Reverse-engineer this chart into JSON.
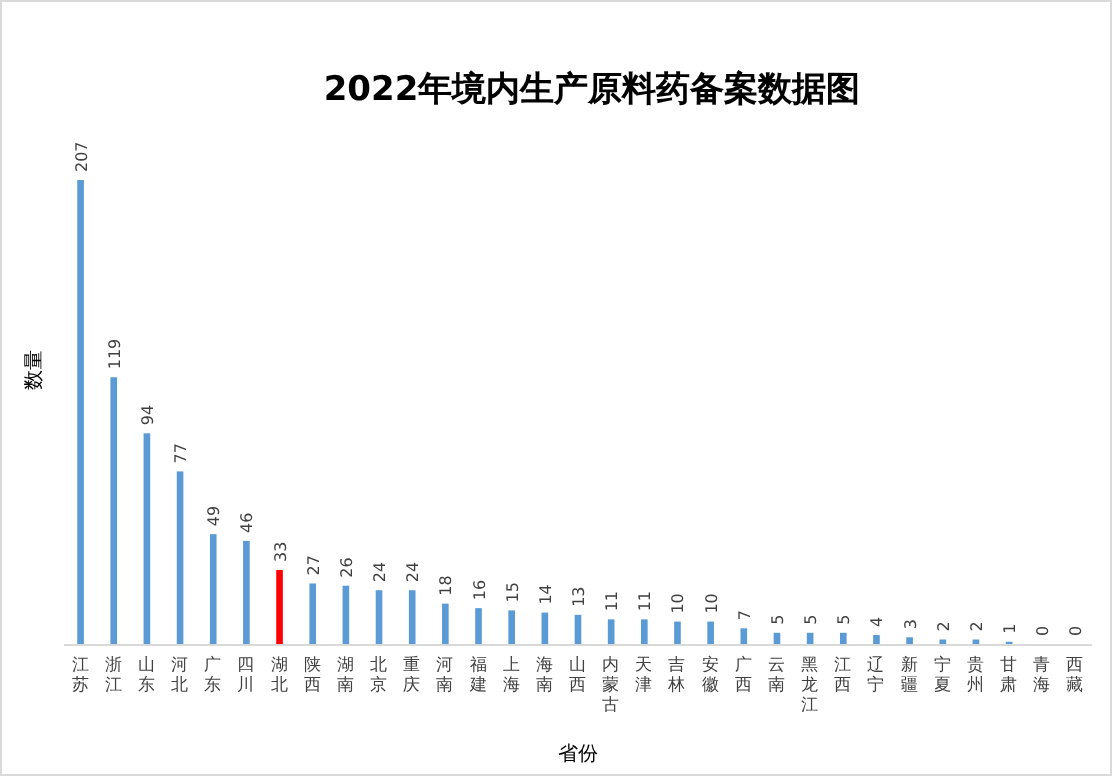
{
  "chart_data": {
    "type": "bar",
    "title": "2022年境内生产原料药备案数据图",
    "xlabel": "省份",
    "ylabel": "数量",
    "categories": [
      "江苏",
      "浙江",
      "山东",
      "河北",
      "广东",
      "四川",
      "湖北",
      "陕西",
      "湖南",
      "北京",
      "重庆",
      "河南",
      "福建",
      "上海",
      "海南",
      "山西",
      "内蒙古",
      "天津",
      "吉林",
      "安徽",
      "广西",
      "云南",
      "黑龙江",
      "江西",
      "辽宁",
      "新疆",
      "宁夏",
      "贵州",
      "甘肃",
      "青海",
      "西藏"
    ],
    "values": [
      207,
      119,
      94,
      77,
      49,
      46,
      33,
      27,
      26,
      24,
      24,
      18,
      16,
      15,
      14,
      13,
      11,
      11,
      10,
      10,
      7,
      5,
      5,
      5,
      4,
      3,
      2,
      2,
      1,
      0,
      0
    ],
    "colors": [
      "#5b9bd5",
      "#5b9bd5",
      "#5b9bd5",
      "#5b9bd5",
      "#5b9bd5",
      "#5b9bd5",
      "#ff0000",
      "#5b9bd5",
      "#5b9bd5",
      "#5b9bd5",
      "#5b9bd5",
      "#5b9bd5",
      "#5b9bd5",
      "#5b9bd5",
      "#5b9bd5",
      "#5b9bd5",
      "#5b9bd5",
      "#5b9bd5",
      "#5b9bd5",
      "#5b9bd5",
      "#5b9bd5",
      "#5b9bd5",
      "#5b9bd5",
      "#5b9bd5",
      "#5b9bd5",
      "#5b9bd5",
      "#5b9bd5",
      "#5b9bd5",
      "#5b9bd5",
      "#5b9bd5",
      "#5b9bd5"
    ],
    "data_labels": true,
    "tick_labels": "x",
    "grid": false
  }
}
